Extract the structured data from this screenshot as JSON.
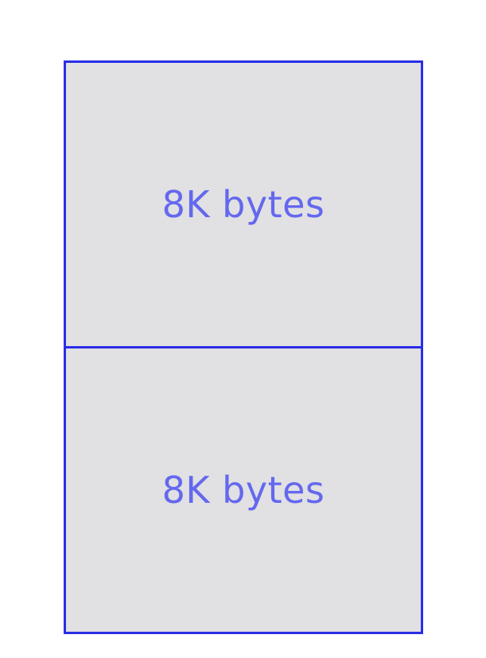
{
  "diagram": {
    "blocks": [
      {
        "label": "8K bytes"
      },
      {
        "label": "8K bytes"
      }
    ],
    "colors": {
      "border": "#2a2ee6",
      "fill": "#e1e0e3",
      "text": "#6468ee",
      "background": "#ffffff"
    }
  }
}
